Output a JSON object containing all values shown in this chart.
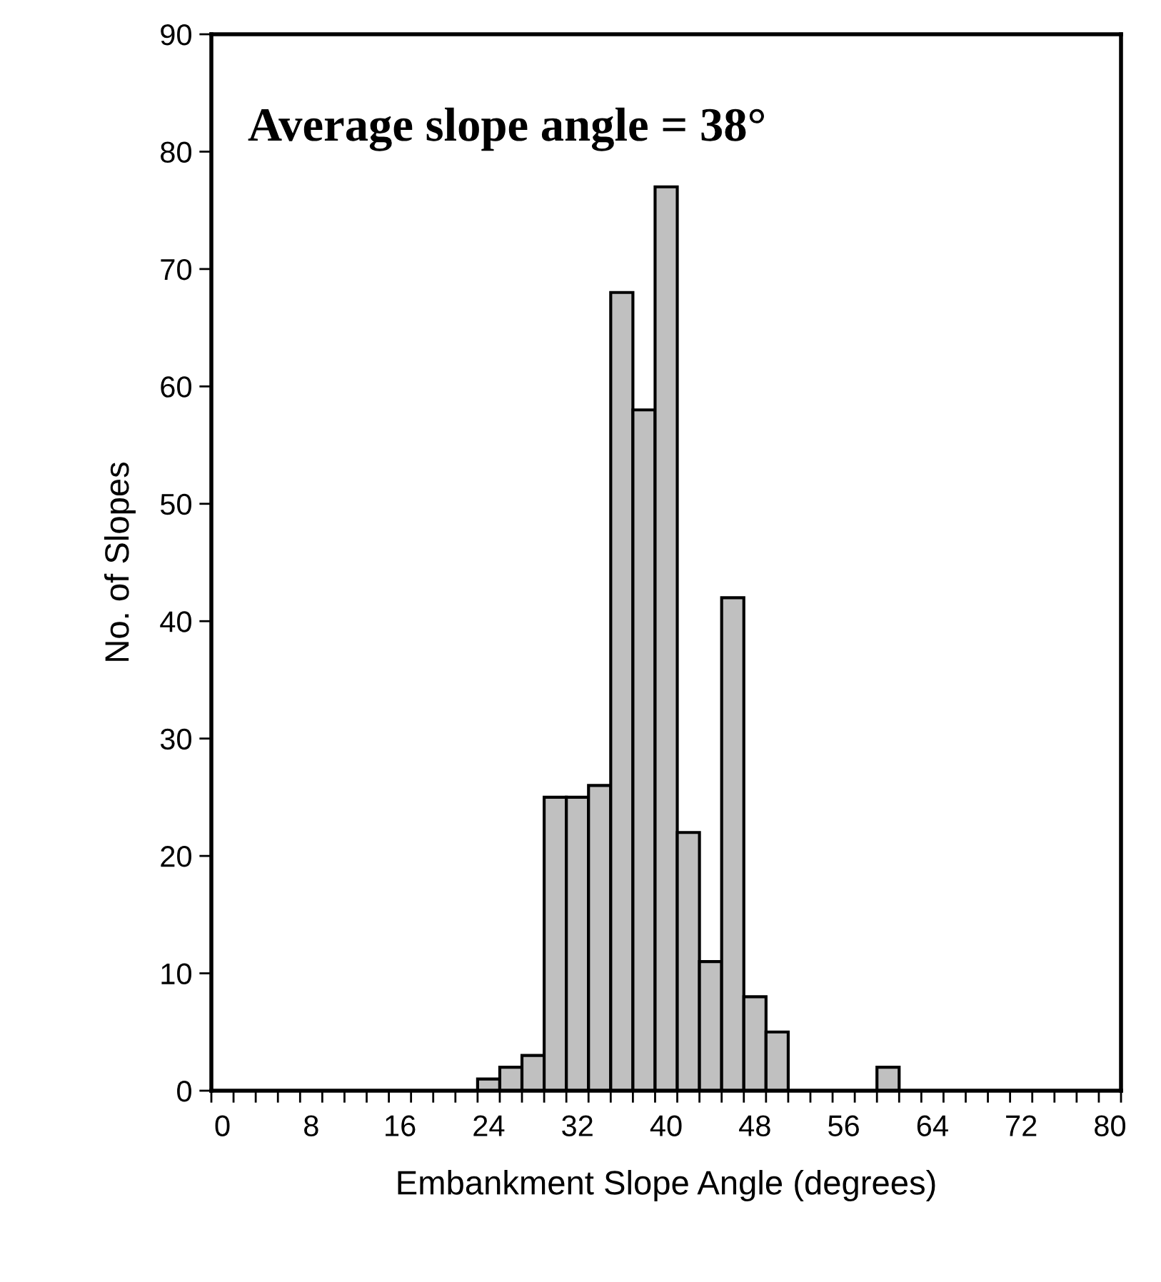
{
  "chart_data": {
    "type": "bar",
    "xlabel": "Embankment Slope Angle (degrees)",
    "ylabel": "No. of Slopes",
    "annotations": [
      "Average slope angle = 38°"
    ],
    "categories": [
      "0",
      null,
      null,
      null,
      "8",
      null,
      null,
      null,
      "16",
      null,
      null,
      null,
      "24",
      null,
      null,
      null,
      "32",
      null,
      null,
      null,
      "40",
      null,
      null,
      null,
      "48",
      null,
      null,
      null,
      "56",
      null,
      null,
      null,
      "64",
      null,
      null,
      null,
      "72",
      null,
      null,
      null,
      "80"
    ],
    "values": [
      null,
      null,
      null,
      null,
      null,
      null,
      null,
      null,
      null,
      null,
      null,
      null,
      1,
      2,
      3,
      25,
      25,
      26,
      68,
      58,
      77,
      22,
      11,
      42,
      8,
      5,
      null,
      null,
      null,
      null,
      2,
      null,
      null,
      null,
      null,
      null,
      null,
      null,
      null,
      null,
      null
    ],
    "color": "#c0c0c0",
    "ylim": [
      0,
      90
    ],
    "yticks": [
      0,
      10,
      20,
      30,
      40,
      50,
      60,
      70,
      80,
      90
    ],
    "grid": false,
    "legend": false
  }
}
